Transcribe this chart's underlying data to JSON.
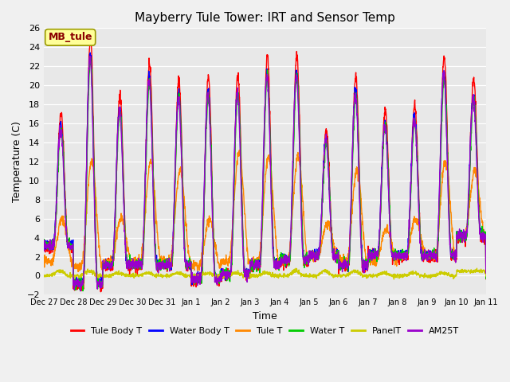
{
  "title": "Mayberry Tule Tower: IRT and Sensor Temp",
  "xlabel": "Time",
  "ylabel": "Temperature (C)",
  "ylim": [
    -2,
    26
  ],
  "yticks": [
    -2,
    0,
    2,
    4,
    6,
    8,
    10,
    12,
    14,
    16,
    18,
    20,
    22,
    24,
    26
  ],
  "x_tick_labels": [
    "Dec 27",
    "Dec 28",
    "Dec 29",
    "Dec 30",
    "Dec 31",
    "Jan 1",
    "Jan 2",
    "Jan 3",
    "Jan 4",
    "Jan 5",
    "Jan 6",
    "Jan 7",
    "Jan 8",
    "Jan 9",
    "Jan 10",
    "Jan 11"
  ],
  "n_days": 15,
  "annotation_text": "MB_tule",
  "annotation_color": "#8b0000",
  "annotation_bg": "#ffff99",
  "annotation_edge": "#999900",
  "legend_entries": [
    "Tule Body T",
    "Water Body T",
    "Tule T",
    "Water T",
    "PanelT",
    "AM25T"
  ],
  "line_colors": [
    "#ff0000",
    "#0000ff",
    "#ff8800",
    "#00cc00",
    "#cccc00",
    "#9900cc"
  ],
  "line_width": 1.0,
  "figsize": [
    6.4,
    4.8
  ],
  "dpi": 100,
  "fig_bg": "#f0f0f0",
  "plot_bg": "#e8e8e8",
  "grid_color": "#ffffff",
  "daily_peaks": [
    17.0,
    25.0,
    19.0,
    22.5,
    20.5,
    21.0,
    21.0,
    23.0,
    23.0,
    15.5,
    21.0,
    17.5,
    18.0,
    23.0,
    20.5
  ],
  "daily_mins": [
    3.0,
    -1.0,
    1.0,
    1.0,
    1.0,
    -0.5,
    0.0,
    1.0,
    1.5,
    2.0,
    1.0,
    2.0,
    2.0,
    2.0,
    4.0
  ],
  "tule_t_peaks": [
    6.0,
    12.0,
    6.0,
    12.0,
    11.0,
    6.0,
    13.0,
    12.5,
    12.5,
    5.5,
    11.0,
    5.0,
    6.0,
    12.0,
    11.0
  ],
  "tule_t_mins": [
    1.5,
    1.0,
    1.5,
    1.5,
    1.5,
    1.0,
    1.5,
    1.5,
    1.5,
    2.0,
    1.5,
    1.5,
    2.0,
    2.0,
    4.0
  ],
  "panel_peaks": [
    0.5,
    0.5,
    0.3,
    0.3,
    0.3,
    0.3,
    0.3,
    0.3,
    0.5,
    0.5,
    0.5,
    0.3,
    0.3,
    0.3,
    0.5
  ],
  "panel_mins": [
    0.0,
    0.0,
    0.0,
    0.0,
    0.0,
    0.0,
    0.0,
    0.0,
    0.0,
    0.0,
    0.0,
    0.0,
    0.0,
    0.0,
    0.5
  ]
}
